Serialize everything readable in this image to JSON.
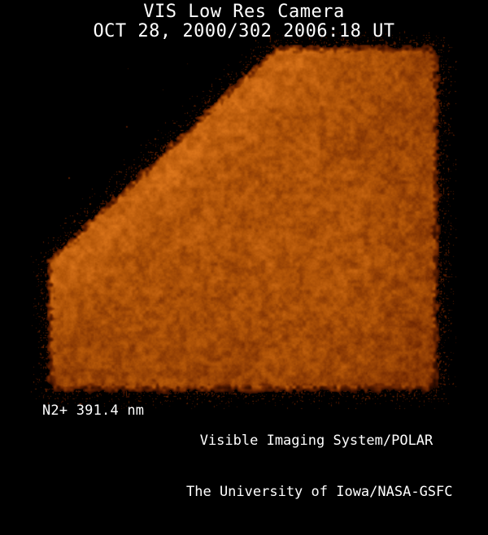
{
  "header": {
    "line1": "VIS Low Res Camera",
    "line2": "OCT 28, 2000/302 2006:18 UT"
  },
  "footer": {
    "filter_label": "N2+ 391.4 nm",
    "credit_line1": "Visible Imaging System/POLAR",
    "credit_line2": "The University of Iowa/NASA-GSFC"
  },
  "image": {
    "description": "Mottled orange auroral camera frame with black shadow wedge across the upper-left corner and dark speckled fringes along its edges",
    "palette": {
      "background": "#000000",
      "text": "#ffffff",
      "deep": "#3c1000",
      "dark": "#762b02",
      "mid": "#b05408",
      "bright": "#d9731a",
      "peak": "#ee8c2c"
    }
  }
}
